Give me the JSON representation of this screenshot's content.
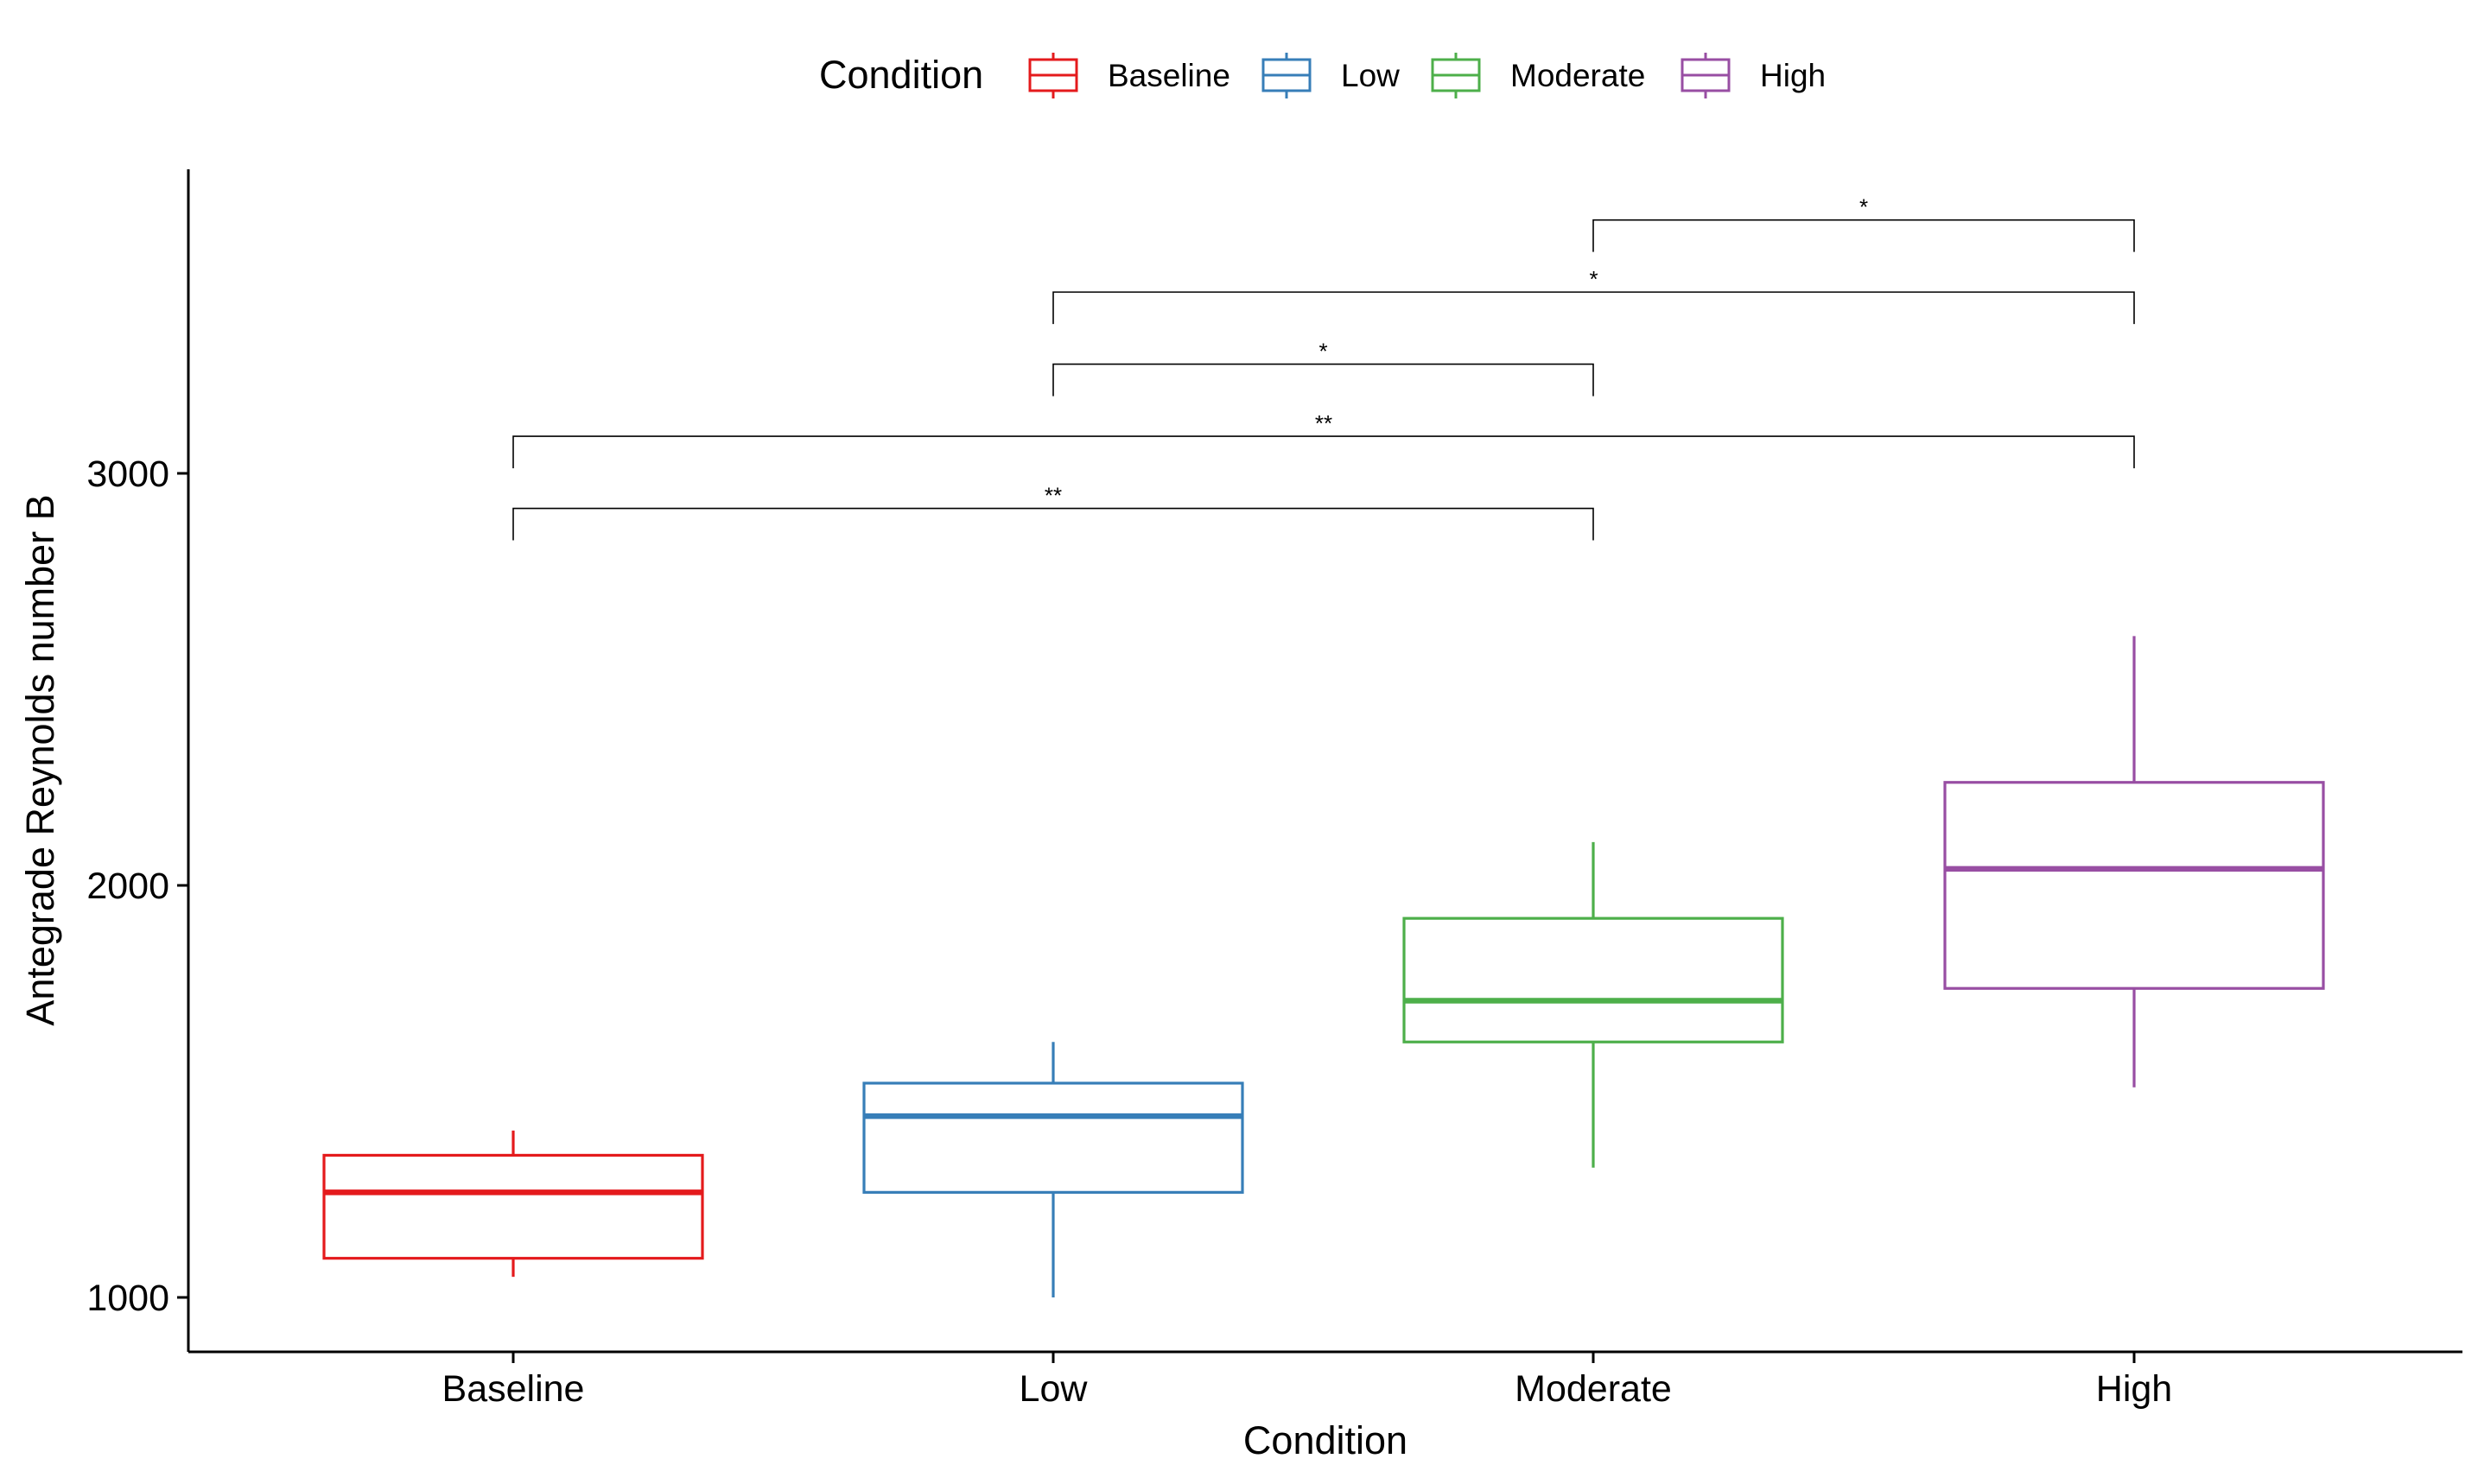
{
  "chart_data": {
    "type": "box",
    "title": "",
    "xlabel": "Condition",
    "ylabel": "Antegrade Reynolds number B",
    "ylim": [
      870,
      3720
    ],
    "yticks": [
      1000,
      2000,
      3000
    ],
    "grid": false,
    "legend": {
      "title": "Condition",
      "position": "top",
      "entries": [
        "Baseline",
        "Low",
        "Moderate",
        "High"
      ]
    },
    "categories": [
      "Baseline",
      "Low",
      "Moderate",
      "High"
    ],
    "series": [
      {
        "name": "Baseline",
        "color": "#E41A1C",
        "whisker_low": 1050,
        "q1": 1095,
        "median": 1255,
        "q3": 1345,
        "whisker_high": 1405
      },
      {
        "name": "Low",
        "color": "#377EB8",
        "whisker_low": 1000,
        "q1": 1255,
        "median": 1440,
        "q3": 1520,
        "whisker_high": 1620
      },
      {
        "name": "Moderate",
        "color": "#4DAF4A",
        "whisker_low": 1315,
        "q1": 1620,
        "median": 1720,
        "q3": 1920,
        "whisker_high": 2105
      },
      {
        "name": "High",
        "color": "#984EA3",
        "whisker_low": 1510,
        "q1": 1750,
        "median": 2040,
        "q3": 2250,
        "whisker_high": 2605
      }
    ],
    "comparisons": [
      {
        "from": "Baseline",
        "to": "Moderate",
        "label": "**",
        "y": 2915
      },
      {
        "from": "Baseline",
        "to": "High",
        "label": "**",
        "y": 3090
      },
      {
        "from": "Low",
        "to": "Moderate",
        "label": "*",
        "y": 3265
      },
      {
        "from": "Low",
        "to": "High",
        "label": "*",
        "y": 3440
      },
      {
        "from": "Moderate",
        "to": "High",
        "label": "*",
        "y": 3615
      }
    ]
  }
}
